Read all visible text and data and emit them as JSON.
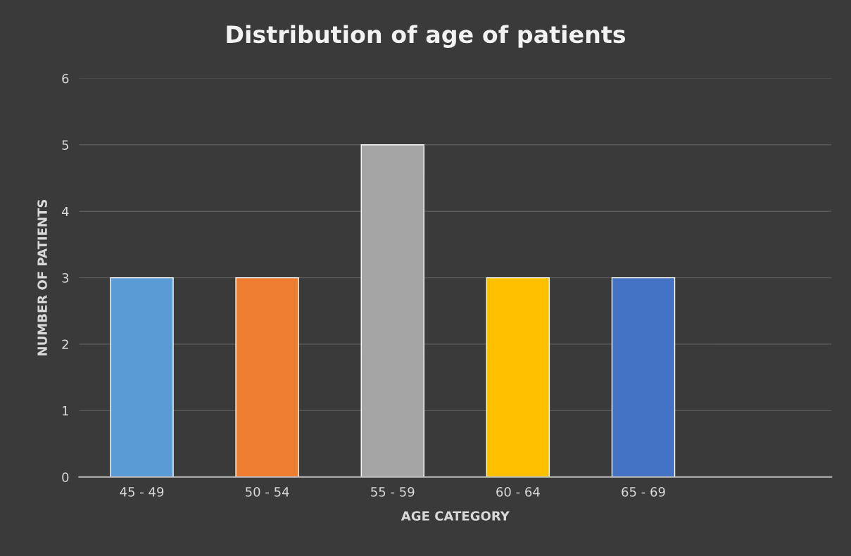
{
  "chart_data": {
    "type": "bar",
    "title": "Distribution of age of patients",
    "xlabel": "AGE CATEGORY",
    "ylabel": "NUMBER OF PATIENTS",
    "categories": [
      "45 - 49",
      "50 - 54",
      "55 - 59",
      "60 - 64",
      "65 - 69",
      null
    ],
    "values": [
      3,
      3,
      5,
      3,
      3,
      null
    ],
    "colors": [
      "#5b9bd5",
      "#ed7d31",
      "#a5a5a5",
      "#ffc000",
      "#4472c4",
      "#808080"
    ],
    "ylim": [
      0,
      6
    ],
    "yticks": [
      0,
      1,
      2,
      3,
      4,
      5,
      6
    ],
    "grid": "y",
    "legend": false
  }
}
